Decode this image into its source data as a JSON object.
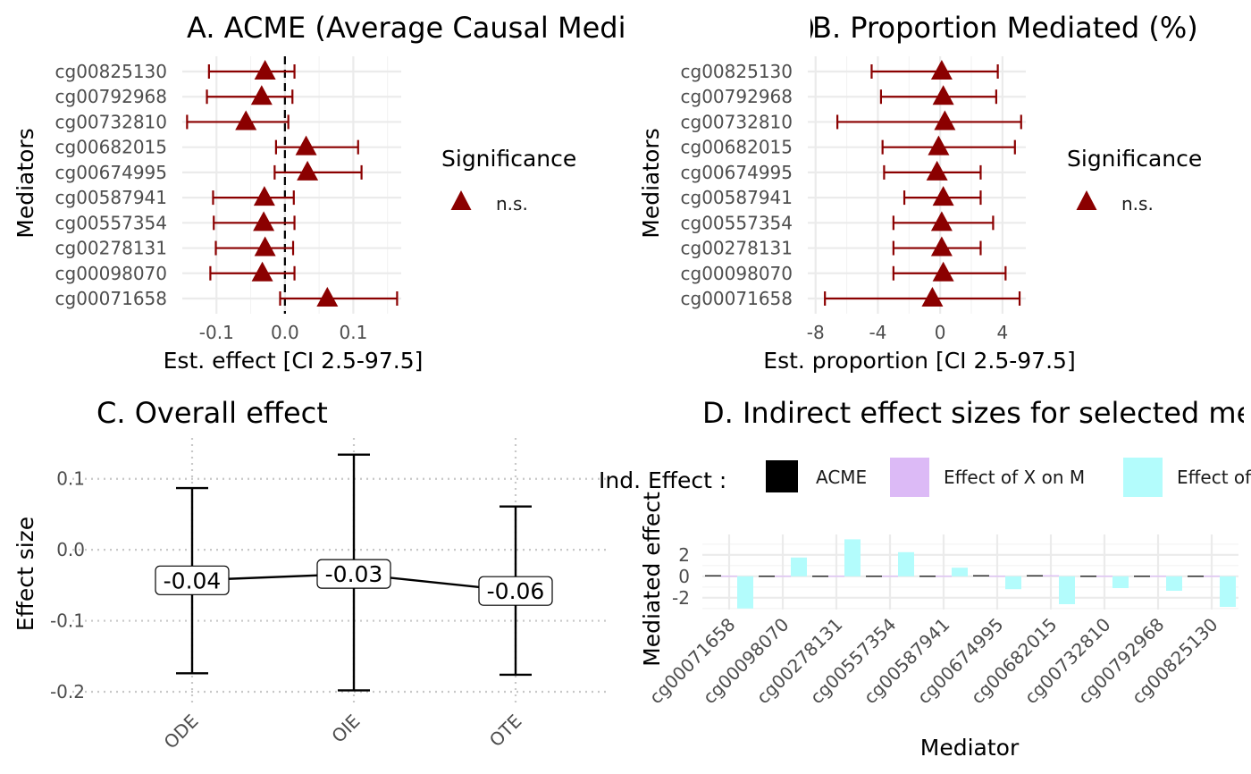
{
  "colors": {
    "significance": "#8b0000",
    "acme": "#000000",
    "effect_x_on_m": "#dcbaf6",
    "effect_m_on_y": "#b3fcfc"
  },
  "chart_data": [
    {
      "id": "A",
      "type": "scatter",
      "title": "A. ACME (Average Causal Mediation Effects)",
      "xlabel": "Est. effect [CI 2.5-97.5]",
      "ylabel": "Mediators",
      "xlim": [
        -0.15,
        0.17
      ],
      "xticks": [
        "-0.1",
        "0.0",
        "0.1"
      ],
      "reference_line": 0,
      "categories": [
        "cg00825130",
        "cg00792968",
        "cg00732810",
        "cg00682015",
        "cg00674995",
        "cg00587941",
        "cg00557354",
        "cg00278131",
        "cg00098070",
        "cg00071658"
      ],
      "estimate": [
        -0.029,
        -0.034,
        -0.057,
        0.031,
        0.033,
        -0.03,
        -0.031,
        -0.029,
        -0.033,
        0.062
      ],
      "ci_low": [
        -0.111,
        -0.114,
        -0.143,
        -0.013,
        -0.015,
        -0.105,
        -0.104,
        -0.101,
        -0.109,
        -0.007
      ],
      "ci_high": [
        0.014,
        0.011,
        0.005,
        0.107,
        0.112,
        0.013,
        0.014,
        0.012,
        0.014,
        0.164
      ],
      "legend": {
        "title": "Significance",
        "entries": [
          "n.s."
        ],
        "position": "right"
      },
      "grid": true
    },
    {
      "id": "B",
      "type": "scatter",
      "title": "B. Proportion Mediated (%)",
      "xlabel": "Est. proportion [CI 2.5-97.5]",
      "ylabel": "Mediators",
      "xlim": [
        -8.5,
        5.5
      ],
      "xticks": [
        "-8",
        "-4",
        "0",
        "4"
      ],
      "categories": [
        "cg00825130",
        "cg00792968",
        "cg00732810",
        "cg00682015",
        "cg00674995",
        "cg00587941",
        "cg00557354",
        "cg00278131",
        "cg00098070",
        "cg00071658"
      ],
      "estimate": [
        0.1,
        0.2,
        0.3,
        -0.1,
        -0.2,
        0.2,
        0.1,
        0.1,
        0.2,
        -0.5
      ],
      "ci_low": [
        -4.4,
        -3.8,
        -6.6,
        -3.7,
        -3.6,
        -2.3,
        -3.0,
        -3.0,
        -3.0,
        -7.4
      ],
      "ci_high": [
        3.7,
        3.6,
        5.2,
        4.8,
        2.6,
        2.6,
        3.4,
        2.6,
        4.2,
        5.1
      ],
      "legend": {
        "title": "Significance",
        "entries": [
          "n.s."
        ],
        "position": "right"
      },
      "grid": true
    },
    {
      "id": "C",
      "type": "line",
      "title": "C. Overall effect",
      "xlabel": "",
      "ylabel": "Effect size",
      "ylim": [
        -0.2,
        0.15
      ],
      "yticks": [
        "0.1",
        "0.0",
        "-0.1",
        "-0.2"
      ],
      "categories": [
        "ODE",
        "OIE",
        "OTE"
      ],
      "values": [
        -0.043,
        -0.034,
        -0.058
      ],
      "value_labels": [
        "-0.04",
        "-0.03",
        "-0.06"
      ],
      "ci_low": [
        -0.174,
        -0.198,
        -0.176
      ],
      "ci_high": [
        0.087,
        0.134,
        0.061
      ],
      "grid": true
    },
    {
      "id": "D",
      "type": "bar",
      "title": "D. Indirect effect sizes for selected mediators",
      "xlabel": "Mediator",
      "ylabel": "Mediated effect",
      "ylim": [
        -3.1,
        3.9
      ],
      "yticks": [
        "2",
        "0",
        "-2"
      ],
      "categories": [
        "cg00071658",
        "cg00098070",
        "cg00278131",
        "cg00557354",
        "cg00587941",
        "cg00674995",
        "cg00682015",
        "cg00732810",
        "cg00792968",
        "cg00825130"
      ],
      "legend": {
        "title": "Ind. Effect :",
        "entries": [
          "ACME",
          "Effect of X on M",
          "Effect of M on Y"
        ],
        "position": "top"
      },
      "series": [
        {
          "name": "ACME",
          "values": [
            0.06,
            -0.03,
            -0.03,
            -0.03,
            -0.03,
            0.03,
            0.03,
            -0.06,
            -0.03,
            -0.03
          ]
        },
        {
          "name": "Effect of X on M",
          "values": [
            -0.05,
            -0.05,
            -0.04,
            -0.04,
            -0.04,
            -0.06,
            0.03,
            -0.03,
            -0.05,
            -0.05
          ]
        },
        {
          "name": "Effect of M on Y",
          "values": [
            -3.0,
            1.75,
            3.45,
            2.25,
            0.8,
            -1.2,
            -2.6,
            -1.1,
            -1.35,
            -2.85
          ]
        }
      ],
      "grid": true
    }
  ]
}
